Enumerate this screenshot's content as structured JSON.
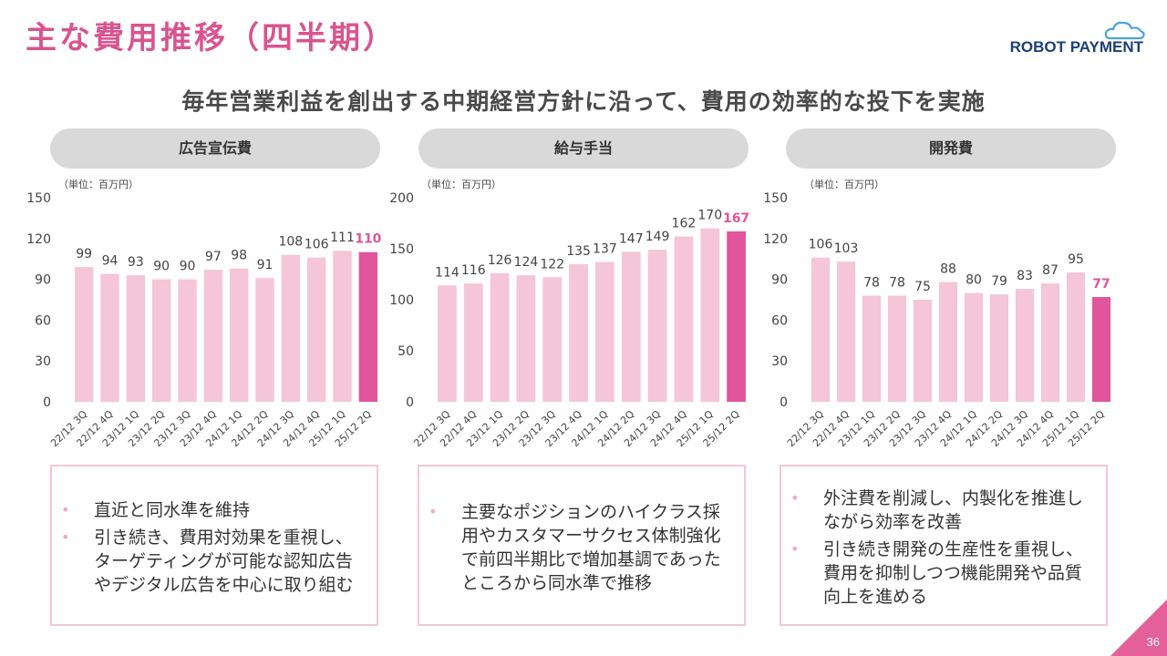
{
  "title": "主な費用推移（四半期）",
  "subtitle": "毎年営業利益を創出する中期経営方針に沿って、費用の効率的な投下を実施",
  "logo": {
    "part1": "ROBOT",
    "part2": "PAYMENT"
  },
  "colors": {
    "accent": "#d9548f",
    "bar": "#f5c5d8",
    "bar_highlight": "#e0559b",
    "header_bg": "#d9d9d9"
  },
  "panels": [
    {
      "header": "広告宣伝費",
      "unit": "（単位：百万円）",
      "notes": [
        "直近と同水準を維持",
        "引き続き、費用対効果を重視し、ターゲティングが可能な認知広告やデジタル広告を中心に取り組む"
      ]
    },
    {
      "header": "給与手当",
      "unit": "（単位：百万円）",
      "notes": [
        "主要なポジションのハイクラス採用やカスタマーサクセス体制強化で前四半期比で増加基調であったところから同水準で推移"
      ]
    },
    {
      "header": "開発費",
      "unit": "（単位：百万円）",
      "notes": [
        "外注費を削減し、内製化を推進しながら効率を改善",
        "引き続き開発の生産性を重視し、費用を抑制しつつ機能開発や品質向上を進める"
      ]
    }
  ],
  "chart_data": [
    {
      "type": "bar",
      "title": "広告宣伝費",
      "ylabel": "（単位：百万円）",
      "categories": [
        "22/12 3Q",
        "22/12 4Q",
        "23/12 1Q",
        "23/12 2Q",
        "23/12 3Q",
        "23/12 4Q",
        "24/12 1Q",
        "24/12 2Q",
        "24/12 3Q",
        "24/12 4Q",
        "25/12 1Q",
        "25/12 2Q"
      ],
      "values": [
        99,
        94,
        93,
        90,
        90,
        97,
        98,
        91,
        108,
        106,
        111,
        110
      ],
      "ylim": [
        0,
        150
      ],
      "yticks": [
        0,
        30,
        60,
        90,
        120,
        150
      ],
      "highlight_last": true
    },
    {
      "type": "bar",
      "title": "給与手当",
      "ylabel": "（単位：百万円）",
      "categories": [
        "22/12 3Q",
        "22/12 4Q",
        "23/12 1Q",
        "23/12 2Q",
        "23/12 3Q",
        "23/12 4Q",
        "24/12 1Q",
        "24/12 2Q",
        "24/12 3Q",
        "24/12 4Q",
        "25/12 1Q",
        "25/12 2Q"
      ],
      "values": [
        114,
        116,
        126,
        124,
        122,
        135,
        137,
        147,
        149,
        162,
        170,
        167
      ],
      "ylim": [
        0,
        200
      ],
      "yticks": [
        0,
        50,
        100,
        150,
        200
      ],
      "highlight_last": true
    },
    {
      "type": "bar",
      "title": "開発費",
      "ylabel": "（単位：百万円）",
      "categories": [
        "22/12 3Q",
        "22/12 4Q",
        "23/12 1Q",
        "23/12 2Q",
        "23/12 3Q",
        "23/12 4Q",
        "24/12 1Q",
        "24/12 2Q",
        "24/12 3Q",
        "24/12 4Q",
        "25/12 1Q",
        "25/12 2Q"
      ],
      "values": [
        106,
        103,
        78,
        78,
        75,
        88,
        80,
        79,
        83,
        87,
        95,
        77
      ],
      "ylim": [
        0,
        150
      ],
      "yticks": [
        0,
        30,
        60,
        90,
        120,
        150
      ],
      "highlight_last": true
    }
  ],
  "page_number": "36"
}
